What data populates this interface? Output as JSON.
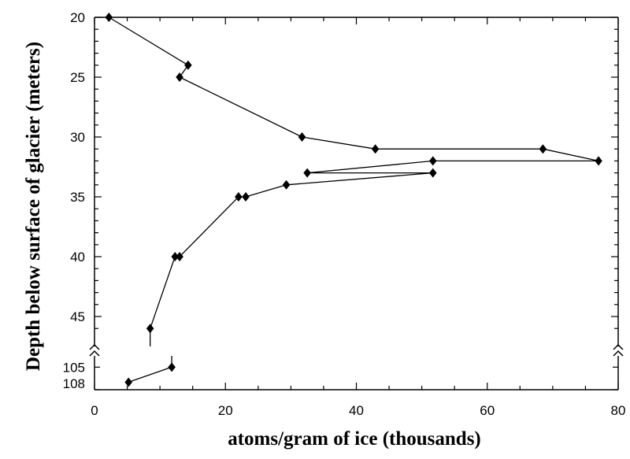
{
  "chart_data": {
    "type": "line",
    "title": "",
    "xlabel": "atoms/gram of ice (thousands)",
    "ylabel": "Depth below surface of glacier (meters)",
    "xlim": [
      0,
      80
    ],
    "y_segments": [
      {
        "range": [
          20,
          47.5
        ],
        "ticks": [
          20,
          25,
          30,
          35,
          40,
          45
        ]
      },
      {
        "range": [
          103.5,
          108
        ],
        "ticks": [
          105,
          108
        ]
      }
    ],
    "x_ticks": [
      0,
      20,
      40,
      60,
      80
    ],
    "y_axis_inverted": true,
    "y_axis_break": true,
    "grid": false,
    "legend": "none",
    "series": [
      {
        "x": [
          2.2,
          14.3,
          13.0,
          31.7,
          42.9,
          68.5,
          77.0,
          51.7,
          32.5,
          51.7,
          29.3,
          23.1,
          22.0,
          13.0,
          12.3,
          8.5
        ],
        "y": [
          20,
          24,
          25,
          30,
          31,
          31,
          32,
          32,
          33,
          33,
          34,
          35,
          35,
          40,
          40,
          46
        ],
        "continues_to": {
          "x": 8.5,
          "y": 47.5
        }
      },
      {
        "x": [
          11.8,
          5.2
        ],
        "y": [
          105,
          107
        ],
        "starts_from": {
          "x": 11.8,
          "y": 103.5
        }
      }
    ]
  }
}
